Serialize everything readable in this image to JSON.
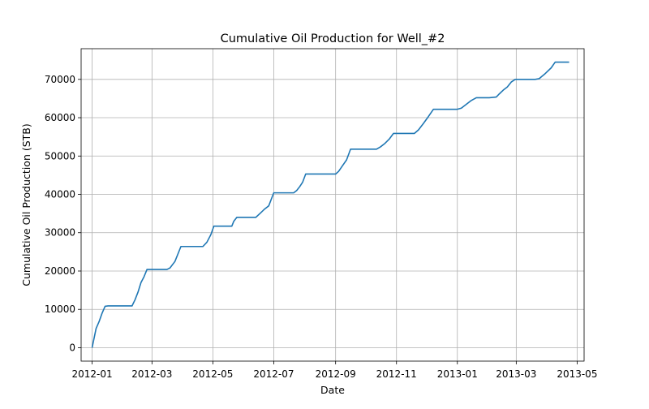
{
  "chart_data": {
    "type": "line",
    "title": "Cumulative Oil Production for Well_#2",
    "xlabel": "Date",
    "ylabel": "Cumulative Oil Production (STB)",
    "x_ticks": [
      "2012-01",
      "2012-03",
      "2012-05",
      "2012-07",
      "2012-09",
      "2012-11",
      "2013-01",
      "2013-03",
      "2013-05"
    ],
    "y_ticks": [
      "0",
      "10000",
      "20000",
      "30000",
      "40000",
      "50000",
      "60000",
      "70000"
    ],
    "xlim": [
      "2011-12-21",
      "2013-05-08"
    ],
    "ylim": [
      -3500,
      78000
    ],
    "grid": true,
    "line_color": "#1f77b4",
    "series": [
      {
        "x": [
          "2012-01-01",
          "2012-01-05",
          "2012-01-08",
          "2012-01-11",
          "2012-01-14",
          "2012-01-17",
          "2012-01-20",
          "2012-01-31",
          "2012-02-10",
          "2012-02-13",
          "2012-02-16",
          "2012-02-19",
          "2012-02-22",
          "2012-02-25",
          "2012-02-27",
          "2012-03-01",
          "2012-03-09",
          "2012-03-16",
          "2012-03-19",
          "2012-03-24",
          "2012-03-30",
          "2012-04-05",
          "2012-04-14",
          "2012-04-21",
          "2012-04-25",
          "2012-04-29",
          "2012-05-02",
          "2012-05-12",
          "2012-05-20",
          "2012-05-22",
          "2012-05-25",
          "2012-06-01",
          "2012-06-08",
          "2012-06-13",
          "2012-06-18",
          "2012-06-22",
          "2012-06-26",
          "2012-07-01",
          "2012-07-09",
          "2012-07-21",
          "2012-07-24",
          "2012-07-27",
          "2012-07-30",
          "2012-08-02",
          "2012-08-04",
          "2012-08-11",
          "2012-08-22",
          "2012-09-01",
          "2012-09-04",
          "2012-09-08",
          "2012-09-12",
          "2012-09-16",
          "2012-09-20",
          "2012-10-01",
          "2012-10-12",
          "2012-10-16",
          "2012-10-20",
          "2012-10-25",
          "2012-10-29",
          "2012-11-01",
          "2012-11-10",
          "2012-11-19",
          "2012-11-23",
          "2012-11-28",
          "2012-12-03",
          "2012-12-08",
          "2012-12-17",
          "2012-12-25",
          "2013-01-01",
          "2013-01-05",
          "2013-01-10",
          "2013-01-15",
          "2013-01-20",
          "2013-01-25",
          "2013-02-02",
          "2013-02-09",
          "2013-02-12",
          "2013-02-16",
          "2013-02-20",
          "2013-02-24",
          "2013-02-28",
          "2013-03-10",
          "2013-03-20",
          "2013-03-24",
          "2013-03-30",
          "2013-04-05",
          "2013-04-09",
          "2013-04-17",
          "2013-04-23"
        ],
        "y": [
          0,
          5000,
          6800,
          9000,
          10800,
          10900,
          10900,
          10900,
          10900,
          12500,
          14500,
          17000,
          18500,
          20400,
          20400,
          20400,
          20400,
          20400,
          20800,
          22500,
          26400,
          26400,
          26400,
          26400,
          27500,
          29500,
          31700,
          31700,
          31700,
          33000,
          34000,
          34000,
          34000,
          34000,
          35200,
          36200,
          37000,
          40400,
          40400,
          40400,
          41000,
          42000,
          43200,
          45300,
          45300,
          45300,
          45300,
          45300,
          46000,
          47500,
          49000,
          51800,
          51800,
          51800,
          51800,
          52400,
          53200,
          54500,
          55900,
          55900,
          55900,
          55900,
          56800,
          58500,
          60300,
          62200,
          62200,
          62200,
          62200,
          62500,
          63500,
          64500,
          65200,
          65200,
          65200,
          65400,
          66200,
          67200,
          68000,
          69300,
          70000,
          70000,
          70000,
          70200,
          71500,
          73000,
          74500,
          74500,
          74500
        ]
      }
    ]
  }
}
